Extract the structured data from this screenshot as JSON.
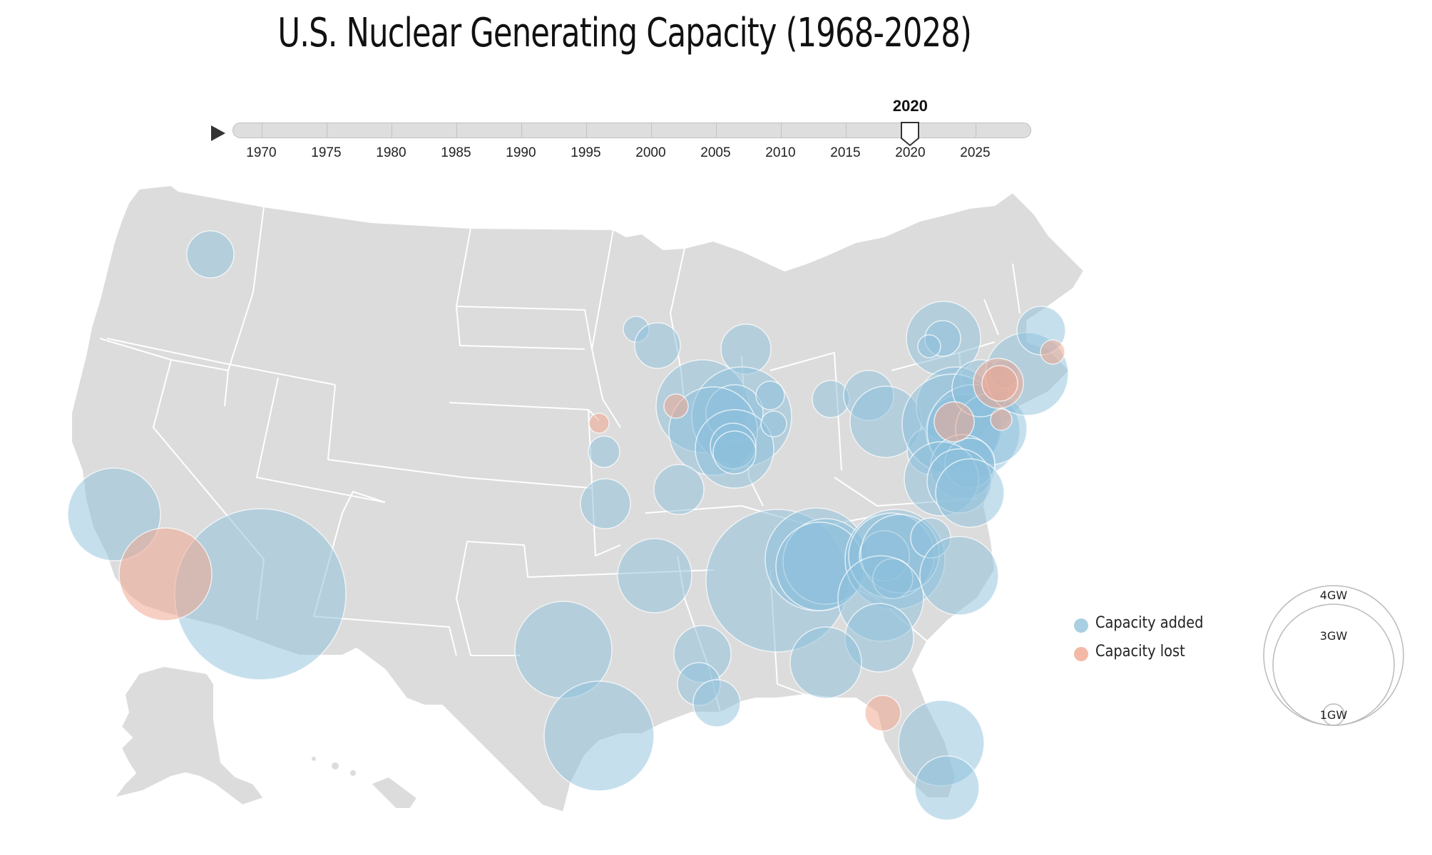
{
  "title": "U.S. Nuclear Generating Capacity (1968-2028)",
  "timeline": {
    "play_icon": "play-icon",
    "current_year": "2020",
    "range": [
      1968,
      2028
    ],
    "ticks": [
      "1970",
      "1975",
      "1980",
      "1985",
      "1990",
      "1995",
      "2000",
      "2005",
      "2010",
      "2015",
      "2020",
      "2025"
    ]
  },
  "legend": {
    "items": [
      {
        "label": "Capacity added",
        "color": "#a9cfe3"
      },
      {
        "label": "Capacity lost",
        "color": "#f4b9a6"
      }
    ],
    "sizes": [
      "4GW",
      "3GW",
      "1GW"
    ]
  },
  "colors": {
    "added": "#8cbfdc",
    "lost": "#f1a892",
    "land": "#dcdcdc",
    "border": "#ffffff"
  }
}
